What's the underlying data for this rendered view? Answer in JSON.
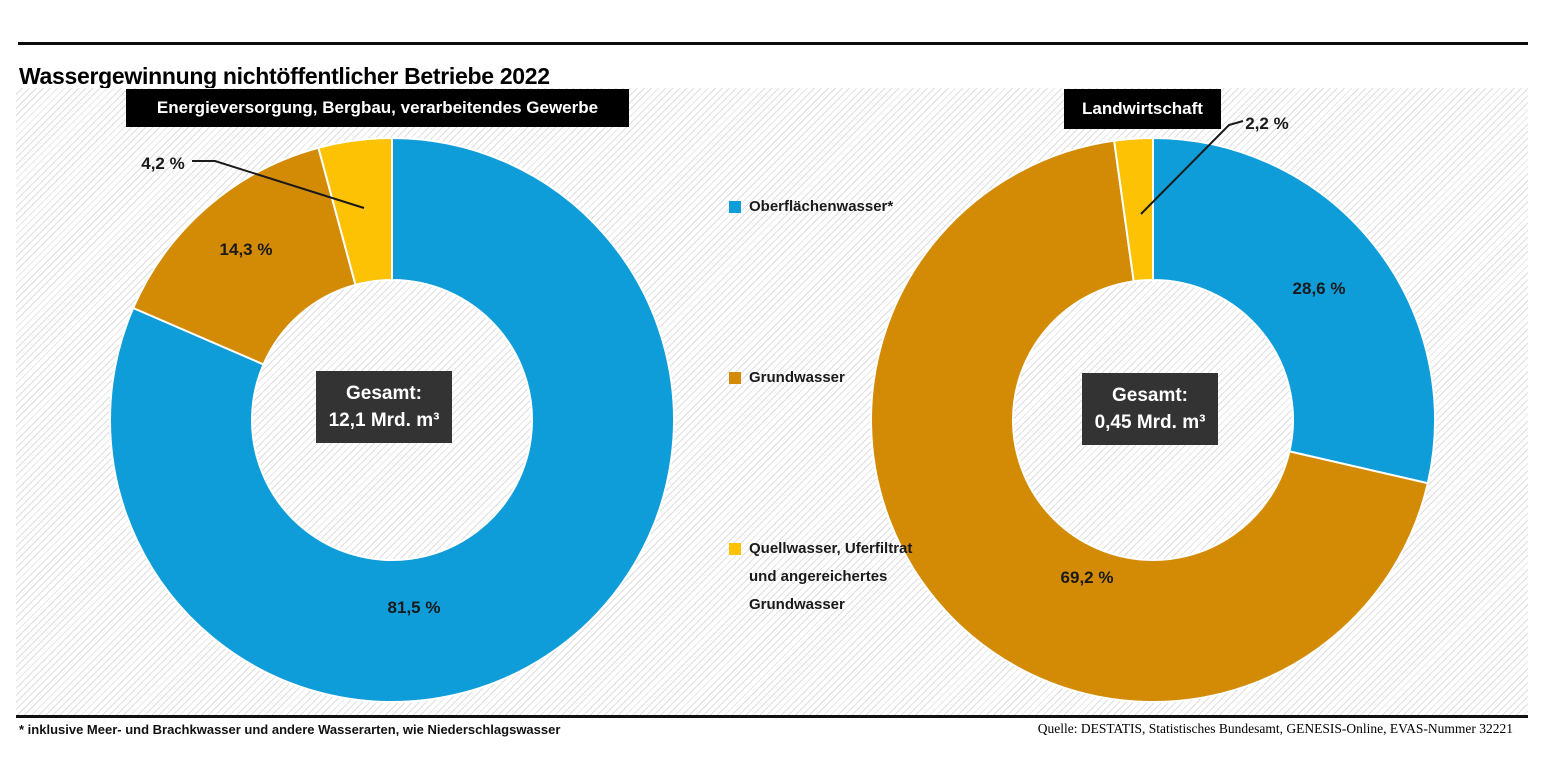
{
  "page": {
    "title": "Wassergewinnung nichtöffentlicher Betriebe 2022",
    "footnote": "* inklusive Meer- und Brachkwasser und andere Wasserarten, wie Niederschlagswasser",
    "source": "Quelle: DESTATIS, Statistisches Bundesamt, GENESIS-Online, EVAS-Nummer 32221"
  },
  "colors": {
    "surface_water_blue": "#0f9dda",
    "ground_water_orange": "#d38b06",
    "spring_water_yellow": "#fcc203",
    "total_box_bg": "#333333",
    "header_box_bg": "#000000",
    "callout_line": "#1a1a1a"
  },
  "legend": {
    "items": [
      {
        "label": "Oberflächenwasser*",
        "color": "#0f9dda"
      },
      {
        "label": "Grundwasser",
        "color": "#d38b06"
      },
      {
        "label": "Quellwasser, Uferfiltrat und angereichertes Grundwasser",
        "color": "#fcc203"
      }
    ]
  },
  "chart_data": [
    {
      "type": "pie",
      "subtype": "donut",
      "title": "Energieversorgung, Bergbau, verarbeitendes Gewerbe",
      "total_label": {
        "line1": "Gesamt:",
        "line2": "12,1 Mrd. m³"
      },
      "start_angle_deg": 0,
      "direction": "clockwise",
      "slices": [
        {
          "name": "Oberflächenwasser*",
          "value": 81.5,
          "label": "81,5 %",
          "color": "#0f9dda"
        },
        {
          "name": "Grundwasser",
          "value": 14.3,
          "label": "14,3 %",
          "color": "#d38b06"
        },
        {
          "name": "Quellwasser, Uferfiltrat und angereichertes Grundwasser",
          "value": 4.2,
          "label": "4,2 %",
          "color": "#fcc203"
        }
      ]
    },
    {
      "type": "pie",
      "subtype": "donut",
      "title": "Landwirtschaft",
      "total_label": {
        "line1": "Gesamt:",
        "line2": "0,45 Mrd. m³"
      },
      "start_angle_deg": 0,
      "direction": "clockwise",
      "slices": [
        {
          "name": "Oberflächenwasser*",
          "value": 28.6,
          "label": "28,6 %",
          "color": "#0f9dda"
        },
        {
          "name": "Grundwasser",
          "value": 69.2,
          "label": "69,2 %",
          "color": "#d38b06"
        },
        {
          "name": "Quellwasser, Uferfiltrat und angereichertes Grundwasser",
          "value": 2.2,
          "label": "2,2 %",
          "color": "#fcc203"
        }
      ]
    }
  ]
}
